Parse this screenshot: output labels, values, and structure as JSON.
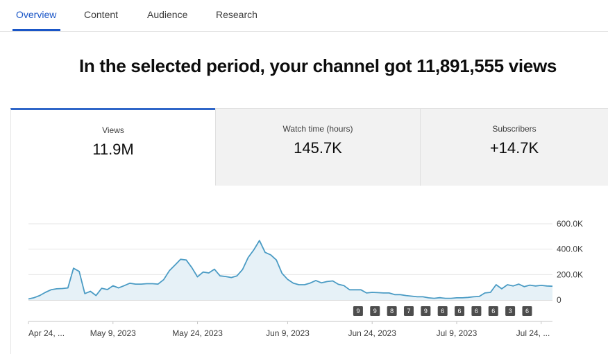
{
  "tabs": [
    {
      "label": "Overview"
    },
    {
      "label": "Content"
    },
    {
      "label": "Audience"
    },
    {
      "label": "Research"
    }
  ],
  "headline": "In the selected period, your channel got 11,891,555 views",
  "metrics": [
    {
      "label": "Views",
      "value": "11.9M"
    },
    {
      "label": "Watch time (hours)",
      "value": "145.7K"
    },
    {
      "label": "Subscribers",
      "value": "+14.7K"
    }
  ],
  "colors": {
    "accent": "#1a56c7",
    "line": "#4a9bc4",
    "fill": "#e6f1f7",
    "badge": "#4d4d4d"
  },
  "chart_data": {
    "type": "area",
    "y_tick_labels": [
      "600.0K",
      "400.0K",
      "200.0K",
      "0"
    ],
    "y_tick_values": [
      600000,
      400000,
      200000,
      0
    ],
    "ylim": [
      0,
      600000
    ],
    "x_tick_labels": [
      "Apr 24, ...",
      "May 9, 2023",
      "May 24, 2023",
      "Jun 9, 2023",
      "Jun 24, 2023",
      "Jul 9, 2023",
      "Jul 24, ..."
    ],
    "x_tick_days": [
      0,
      15,
      30,
      46,
      61,
      76,
      91
    ],
    "x_days": [
      0,
      1,
      2,
      3,
      4,
      5,
      6,
      7,
      8,
      9,
      10,
      11,
      12,
      13,
      14,
      15,
      16,
      17,
      18,
      19,
      20,
      21,
      22,
      23,
      24,
      25,
      26,
      27,
      28,
      29,
      30,
      31,
      32,
      33,
      34,
      35,
      36,
      37,
      38,
      39,
      40,
      41,
      42,
      43,
      44,
      45,
      46,
      47,
      48,
      49,
      50,
      51,
      52,
      53,
      54,
      55,
      56,
      57,
      58,
      59,
      60,
      61,
      62,
      63,
      64,
      65,
      66,
      67,
      68,
      69,
      70,
      71,
      72,
      73,
      74,
      75,
      76,
      77,
      78,
      79,
      80,
      81,
      82,
      83,
      84,
      85,
      86,
      87,
      88,
      89,
      90,
      91,
      92,
      93
    ],
    "values": [
      8000,
      18000,
      35000,
      60000,
      80000,
      88000,
      90000,
      95000,
      250000,
      225000,
      50000,
      68000,
      35000,
      92000,
      82000,
      112000,
      95000,
      113000,
      132000,
      125000,
      125000,
      128000,
      128000,
      125000,
      160000,
      230000,
      275000,
      320000,
      315000,
      255000,
      182000,
      220000,
      213000,
      242000,
      190000,
      185000,
      177000,
      190000,
      240000,
      335000,
      395000,
      468000,
      375000,
      355000,
      315000,
      210000,
      162000,
      132000,
      120000,
      120000,
      133000,
      153000,
      135000,
      145000,
      150000,
      123000,
      113000,
      80000,
      80000,
      80000,
      55000,
      60000,
      58000,
      55000,
      55000,
      42000,
      42000,
      35000,
      30000,
      25000,
      25000,
      17000,
      13000,
      18000,
      13000,
      13000,
      17000,
      17000,
      20000,
      25000,
      28000,
      55000,
      60000,
      120000,
      88000,
      120000,
      110000,
      125000,
      105000,
      117000,
      110000,
      115000,
      110000,
      108000
    ],
    "annotations": [
      {
        "day": 58.5,
        "label": "9"
      },
      {
        "day": 61.5,
        "label": "9"
      },
      {
        "day": 64.5,
        "label": "8"
      },
      {
        "day": 67.5,
        "label": "7"
      },
      {
        "day": 70.5,
        "label": "9"
      },
      {
        "day": 73.5,
        "label": "6"
      },
      {
        "day": 76.5,
        "label": "6"
      },
      {
        "day": 79.5,
        "label": "6"
      },
      {
        "day": 82.5,
        "label": "6"
      },
      {
        "day": 85.5,
        "label": "3"
      },
      {
        "day": 88.5,
        "label": "6"
      }
    ],
    "grid": true,
    "legend": "none"
  }
}
